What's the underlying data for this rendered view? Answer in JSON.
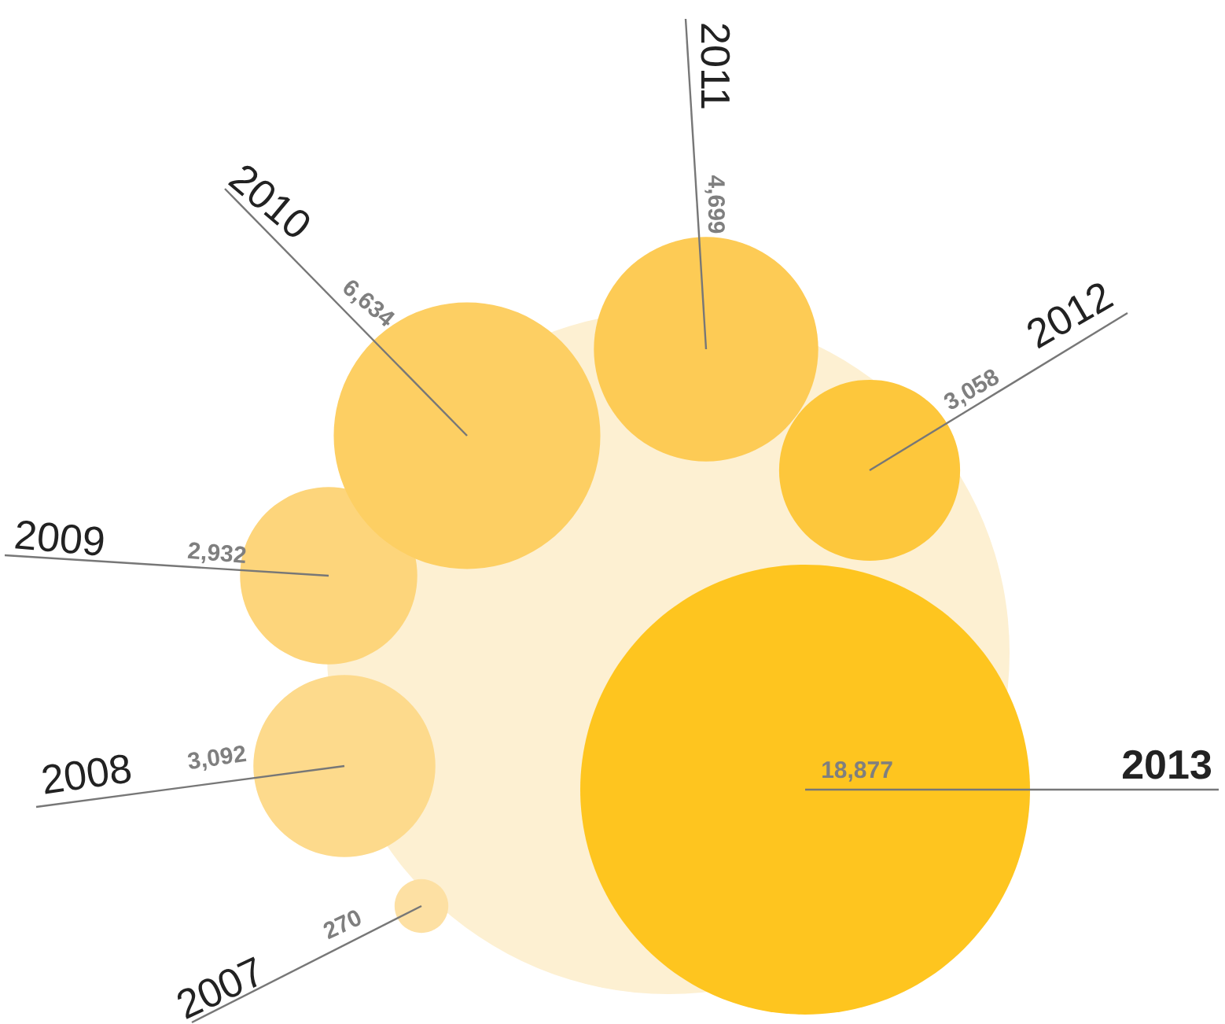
{
  "chart_data": {
    "type": "other",
    "categories": [
      "2007",
      "2008",
      "2009",
      "2010",
      "2011",
      "2012",
      "2013"
    ],
    "values": [
      270,
      3092,
      2932,
      6634,
      4699,
      3058,
      18877
    ],
    "value_labels": [
      "270",
      "3,092",
      "2,932",
      "6,634",
      "4,699",
      "3,058",
      "18,877"
    ],
    "colors": [
      "#fde0a3",
      "#fdda8c",
      "#fdd57b",
      "#fdcf63",
      "#fdcb55",
      "#fdc73c",
      "#fec51f"
    ]
  }
}
